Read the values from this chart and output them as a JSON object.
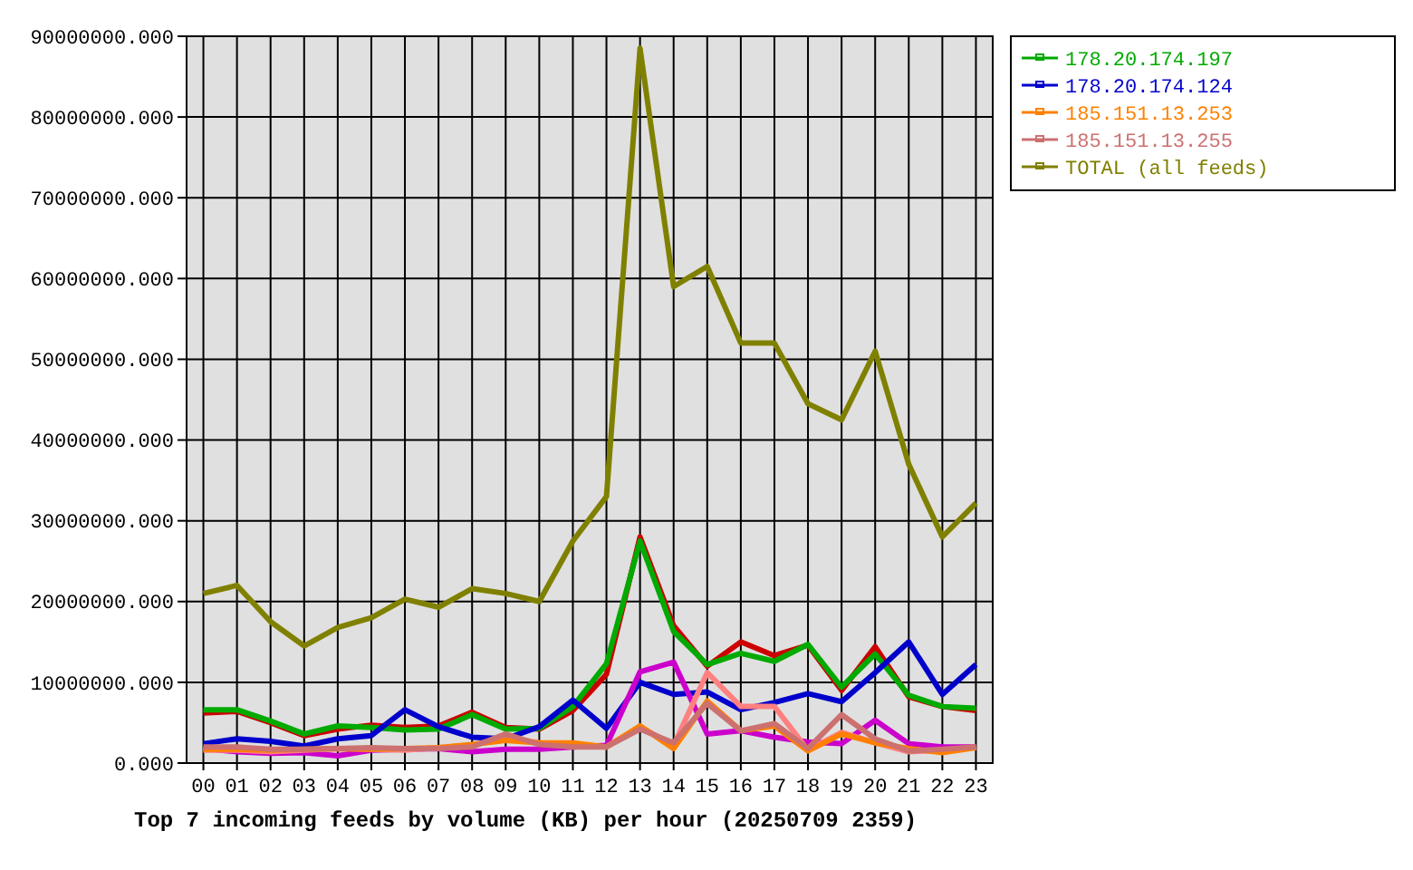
{
  "chart_data": {
    "type": "line",
    "title": "Top 7 incoming feeds by volume (KB) per hour (20250709 2359)",
    "categories": [
      "00",
      "01",
      "02",
      "03",
      "04",
      "05",
      "06",
      "07",
      "08",
      "09",
      "10",
      "11",
      "12",
      "13",
      "14",
      "15",
      "16",
      "17",
      "18",
      "19",
      "20",
      "21",
      "22",
      "23"
    ],
    "ylim": [
      0,
      90000000
    ],
    "yticks": [
      {
        "value": 0,
        "label": "0.000"
      },
      {
        "value": 10000000,
        "label": "10000000.000"
      },
      {
        "value": 20000000,
        "label": "20000000.000"
      },
      {
        "value": 30000000,
        "label": "30000000.000"
      },
      {
        "value": 40000000,
        "label": "40000000.000"
      },
      {
        "value": 50000000,
        "label": "50000000.000"
      },
      {
        "value": 60000000,
        "label": "60000000.000"
      },
      {
        "value": 70000000,
        "label": "70000000.000"
      },
      {
        "value": 80000000,
        "label": "80000000.000"
      },
      {
        "value": 90000000,
        "label": "90000000.000"
      }
    ],
    "grid": true,
    "legend": "right",
    "line_style": "solid",
    "series": [
      {
        "color": "#cc0000",
        "values": [
          6200000,
          6400000,
          5000000,
          3400000,
          4200000,
          4700000,
          4400000,
          4600000,
          6300000,
          4400000,
          4200000,
          6500000,
          11000000,
          28000000,
          17000000,
          12000000,
          15000000,
          13300000,
          14600000,
          9000000,
          14400000,
          8200000,
          7000000,
          6500000
        ]
      },
      {
        "name": "178.20.174.197",
        "color": "#00aa00",
        "values": [
          6600000,
          6600000,
          5200000,
          3600000,
          4600000,
          4400000,
          4100000,
          4200000,
          6000000,
          4200000,
          4300000,
          7000000,
          12300000,
          27500000,
          16300000,
          12200000,
          13600000,
          12600000,
          14700000,
          9400000,
          13500000,
          8400000,
          7000000,
          6800000
        ]
      },
      {
        "name": "178.20.174.124",
        "color": "#0000cc",
        "values": [
          2400000,
          3000000,
          2700000,
          2100000,
          3000000,
          3400000,
          6600000,
          4500000,
          3200000,
          3000000,
          4500000,
          7800000,
          4300000,
          10000000,
          8500000,
          8800000,
          6600000,
          7500000,
          8600000,
          7600000,
          11200000,
          15000000,
          8500000,
          12200000
        ]
      },
      {
        "color": "#cc00cc",
        "values": [
          1800000,
          1400000,
          1200000,
          1300000,
          900000,
          1600000,
          1700000,
          1800000,
          1400000,
          1700000,
          1700000,
          2000000,
          2200000,
          11300000,
          12500000,
          3600000,
          4000000,
          3200000,
          2600000,
          2400000,
          5300000,
          2400000,
          2000000,
          2000000
        ]
      },
      {
        "color": "#ff8080",
        "values": [
          1600000,
          1600000,
          1400000,
          1600000,
          1800000,
          1700000,
          1600000,
          1900000,
          2200000,
          3200000,
          2500000,
          2200000,
          2000000,
          4500000,
          2200000,
          11200000,
          7000000,
          7000000,
          1600000,
          3800000,
          2500000,
          1400000,
          1600000,
          2000000
        ]
      },
      {
        "name": "185.151.13.253",
        "color": "#ff8000",
        "values": [
          1700000,
          1700000,
          1600000,
          1700000,
          1800000,
          1700000,
          1800000,
          1900000,
          2300000,
          2800000,
          2500000,
          2500000,
          2000000,
          4600000,
          1800000,
          7700000,
          4000000,
          4600000,
          1500000,
          3600000,
          2500000,
          1800000,
          1300000,
          1900000
        ]
      },
      {
        "name": "185.151.13.255",
        "color": "#cc7070",
        "values": [
          2000000,
          2000000,
          1700000,
          1700000,
          1800000,
          1900000,
          1800000,
          1800000,
          2000000,
          3600000,
          2300000,
          2000000,
          2000000,
          4200000,
          2500000,
          7400000,
          4000000,
          4900000,
          1800000,
          6000000,
          3000000,
          1500000,
          1700000,
          2000000
        ]
      },
      {
        "name": "TOTAL (all feeds)",
        "color": "#808000",
        "values": [
          21000000,
          22000000,
          17500000,
          14500000,
          16800000,
          18000000,
          20300000,
          19300000,
          21600000,
          21000000,
          20000000,
          27500000,
          33000000,
          88500000,
          59000000,
          61500000,
          52000000,
          52000000,
          44500000,
          42500000,
          51000000,
          37000000,
          28000000,
          32200000
        ]
      }
    ]
  }
}
